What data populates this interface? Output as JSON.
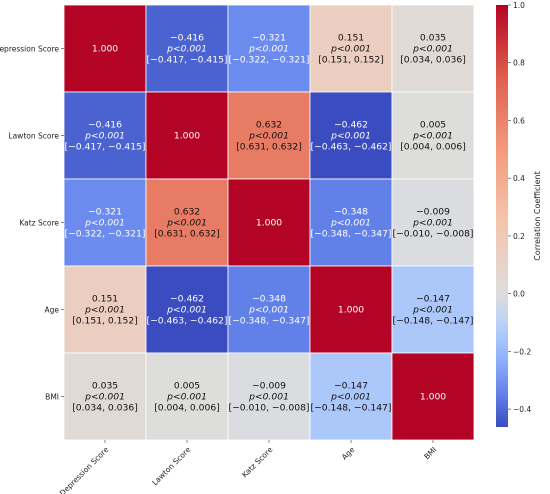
{
  "chart_data": {
    "type": "heatmap",
    "variables": [
      "Depression Score",
      "Lawton Score",
      "Katz Score",
      "Age",
      "BMI"
    ],
    "correlation": [
      [
        1.0,
        -0.416,
        -0.321,
        0.151,
        0.035
      ],
      [
        -0.416,
        1.0,
        0.632,
        -0.462,
        0.005
      ],
      [
        -0.321,
        0.632,
        1.0,
        -0.348,
        -0.009
      ],
      [
        0.151,
        -0.462,
        -0.348,
        1.0,
        -0.147
      ],
      [
        0.035,
        0.005,
        -0.009,
        -0.147,
        1.0
      ]
    ],
    "cell_labels": [
      [
        [
          "1.000"
        ],
        [
          "−0.416",
          "p<0.001",
          "[−0.417, −0.415]"
        ],
        [
          "−0.321",
          "p<0.001",
          "[−0.322, −0.321]"
        ],
        [
          "0.151",
          "p<0.001",
          "[0.151, 0.152]"
        ],
        [
          "0.035",
          "p<0.001",
          "[0.034, 0.036]"
        ]
      ],
      [
        [
          "−0.416",
          "p<0.001",
          "[−0.417, −0.415]"
        ],
        [
          "1.000"
        ],
        [
          "0.632",
          "p<0.001",
          "[0.631, 0.632]"
        ],
        [
          "−0.462",
          "p<0.001",
          "[−0.463, −0.462]"
        ],
        [
          "0.005",
          "p<0.001",
          "[0.004, 0.006]"
        ]
      ],
      [
        [
          "−0.321",
          "p<0.001",
          "[−0.322, −0.321]"
        ],
        [
          "0.632",
          "p<0.001",
          "[0.631, 0.632]"
        ],
        [
          "1.000"
        ],
        [
          "−0.348",
          "p<0.001",
          "[−0.348, −0.347]"
        ],
        [
          "−0.009",
          "p<0.001",
          "[−0.010, −0.008]"
        ]
      ],
      [
        [
          "0.151",
          "p<0.001",
          "[0.151, 0.152]"
        ],
        [
          "−0.462",
          "p<0.001",
          "[−0.463, −0.462]"
        ],
        [
          "−0.348",
          "p<0.001",
          "[−0.348, −0.347]"
        ],
        [
          "1.000"
        ],
        [
          "−0.147",
          "p<0.001",
          "[−0.148, −0.147]"
        ]
      ],
      [
        [
          "0.035",
          "p<0.001",
          "[0.034, 0.036]"
        ],
        [
          "0.005",
          "p<0.001",
          "[0.004, 0.006]"
        ],
        [
          "−0.009",
          "p<0.001",
          "[−0.010, −0.008]"
        ],
        [
          "−0.147",
          "p<0.001",
          "[−0.148, −0.147]"
        ],
        [
          "1.000"
        ]
      ]
    ],
    "colorbar": {
      "label": "Correlation Coefficient",
      "range": [
        -0.462,
        1.0
      ],
      "ticks": [
        1.0,
        0.8,
        0.6,
        0.4,
        0.2,
        0.0,
        -0.2,
        -0.4
      ],
      "tick_labels": [
        "1.0",
        "0.8",
        "0.6",
        "0.4",
        "0.2",
        "0.0",
        "−0.2",
        "−0.4"
      ],
      "colormap": "coolwarm"
    }
  }
}
